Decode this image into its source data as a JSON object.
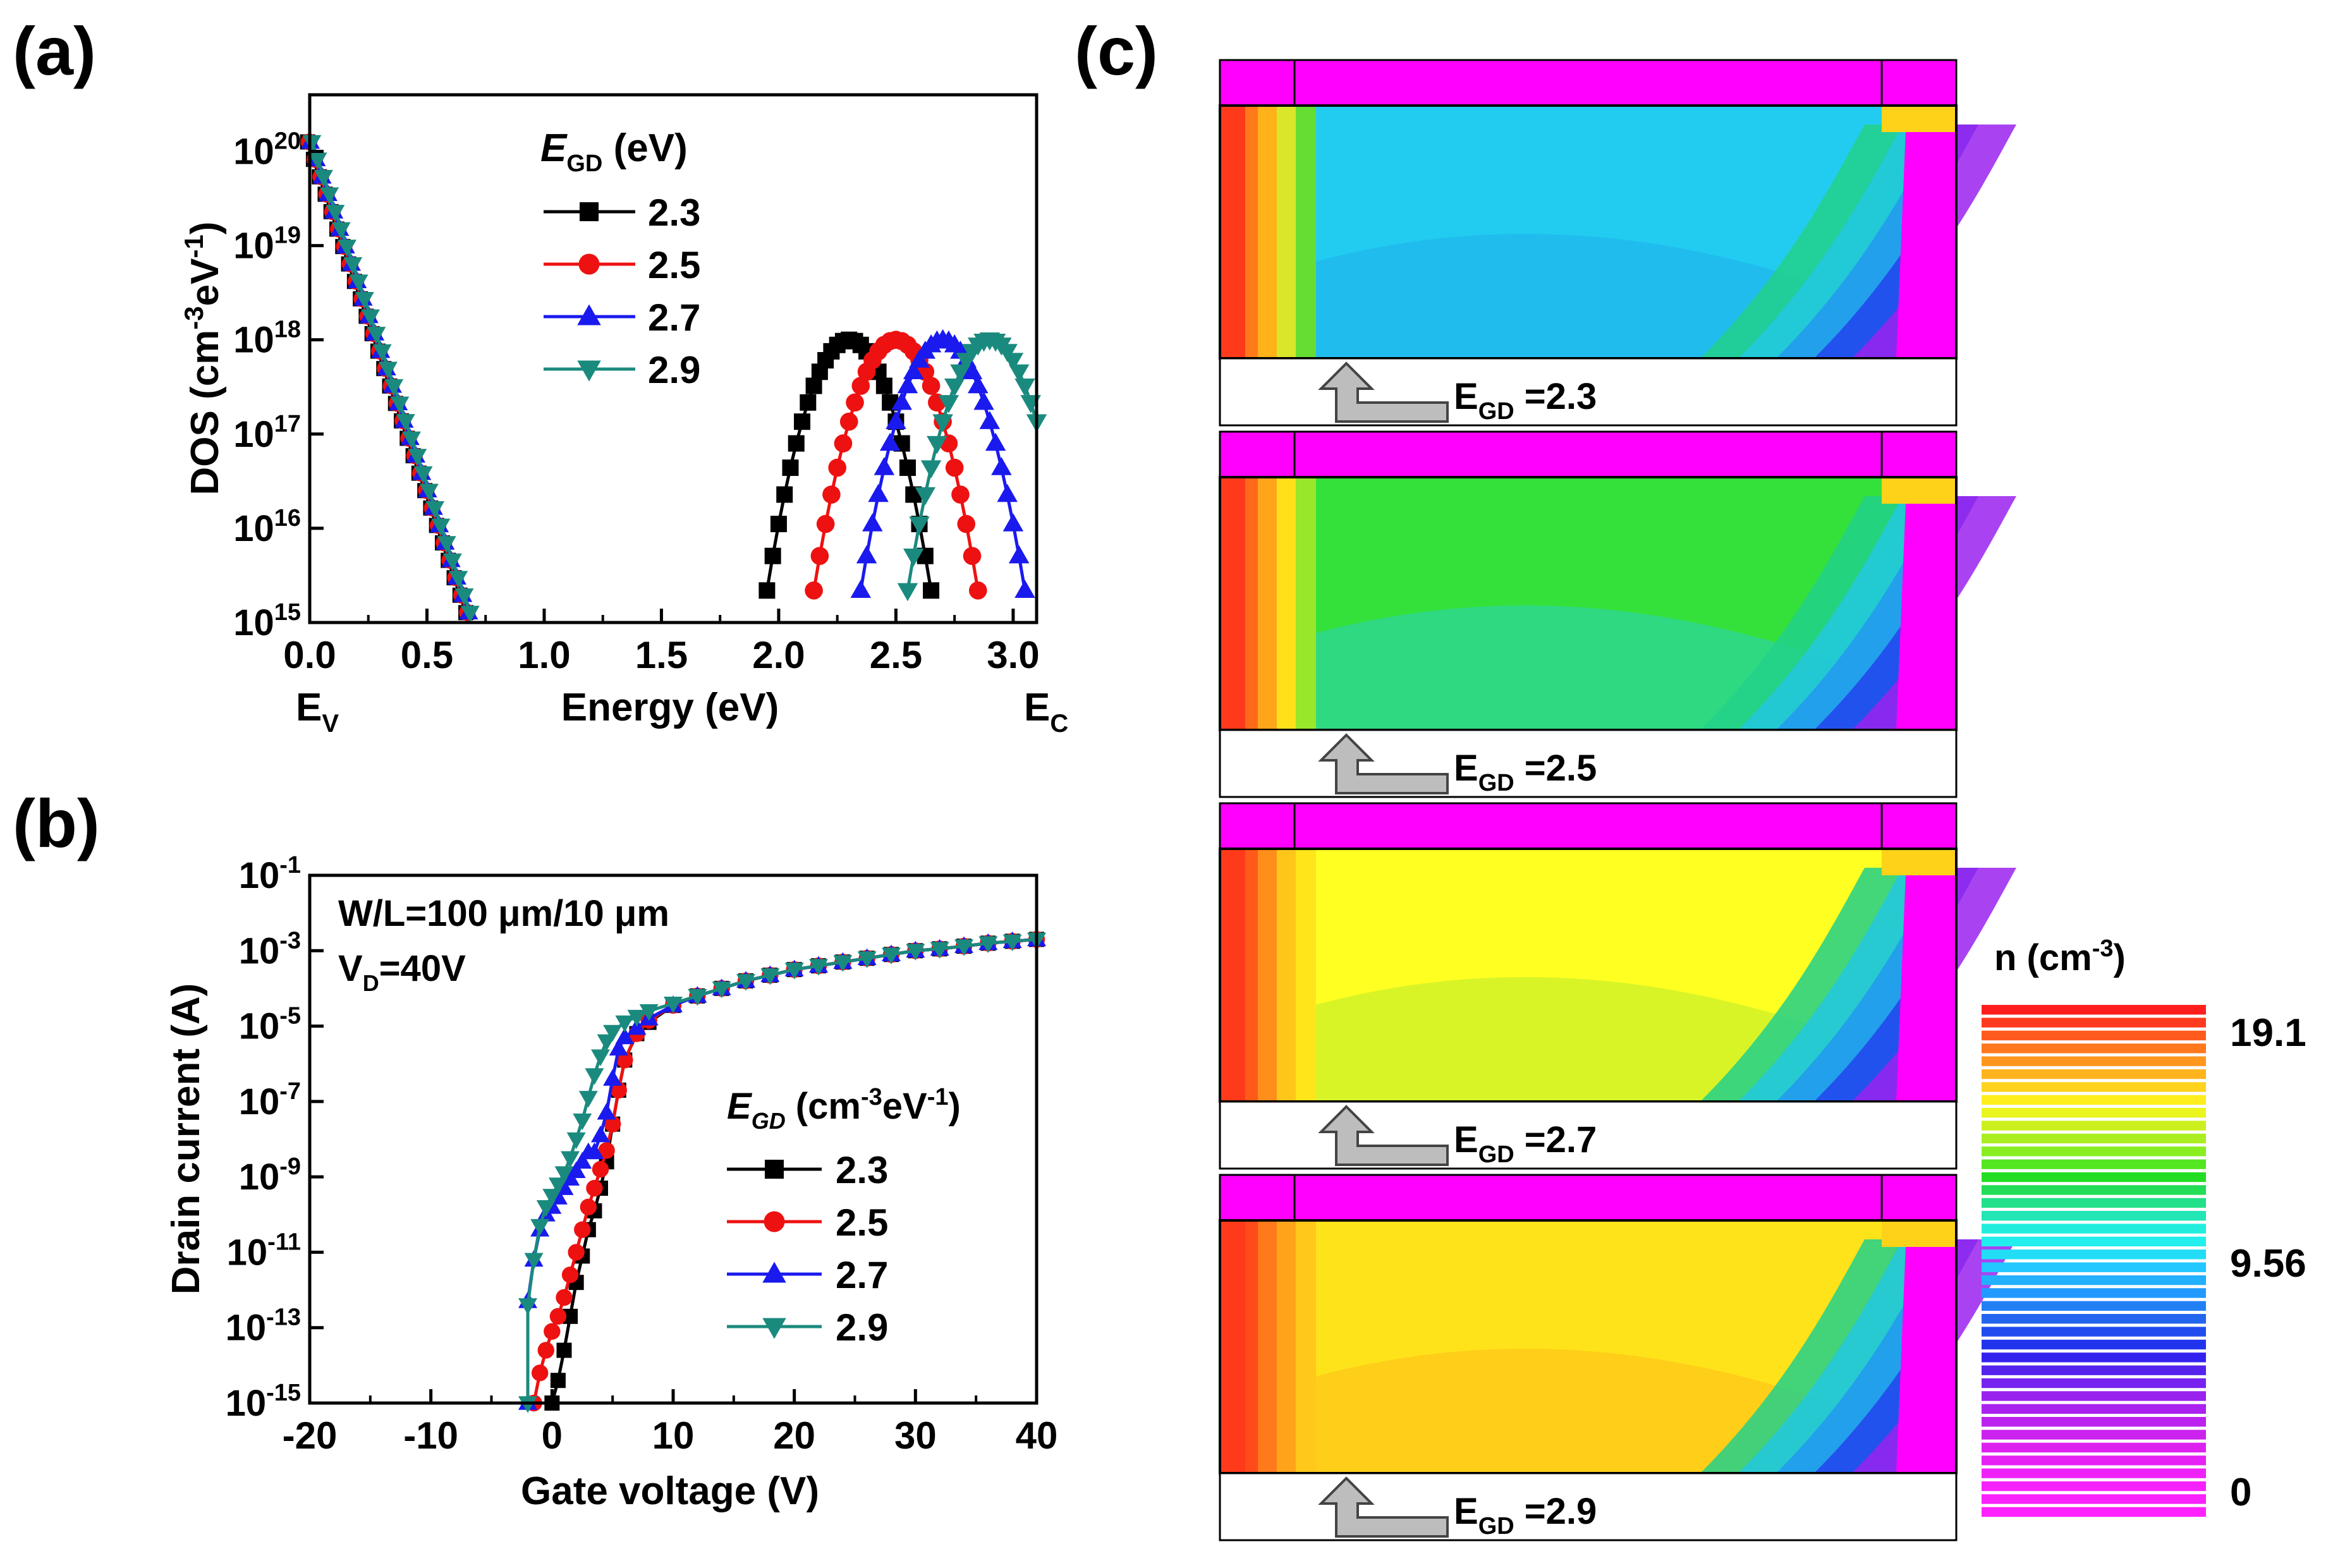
{
  "panel_labels": [
    "(a)",
    "(b)",
    "(c)"
  ],
  "colors": {
    "2.3": "#000000",
    "2.5": "#ee1111",
    "2.7": "#1a1aee",
    "2.9": "#1b8a7e",
    "oxide": "#ff00ff"
  },
  "chart_data": [
    {
      "panel": "(a)",
      "type": "line",
      "ylabel": {
        "base": "DOS (cm",
        "sup1": "-3",
        "mid": "eV",
        "sup2": "-1",
        "end": ")"
      },
      "xlabel": "Energy (eV)",
      "xlim": [
        0,
        3.1
      ],
      "ylim_log10": [
        15,
        20.6
      ],
      "y_scale": "log",
      "xticks": [
        "0.0",
        "0.5",
        "1.0",
        "1.5",
        "2.0",
        "2.5",
        "3.0"
      ],
      "xtick_values": [
        0,
        0.5,
        1.0,
        1.5,
        2.0,
        2.5,
        3.0
      ],
      "yticks": [
        {
          "base": "10",
          "exp": "15",
          "value": 15
        },
        {
          "base": "10",
          "exp": "16",
          "value": 16
        },
        {
          "base": "10",
          "exp": "17",
          "value": 17
        },
        {
          "base": "10",
          "exp": "18",
          "value": 18
        },
        {
          "base": "10",
          "exp": "19",
          "value": 19
        },
        {
          "base": "10",
          "exp": "20",
          "value": 20
        }
      ],
      "band_edges": [
        {
          "base": "E",
          "sub": "V"
        },
        {
          "base": "E",
          "sub": "C"
        }
      ],
      "legend": {
        "title_italic": "E",
        "title_sub": "GD",
        "title_rest": " (eV)",
        "position": "top-right"
      },
      "tail": {
        "x_start": 0.0,
        "log10_start": 20.1,
        "slope_per_eV": -7.4
      },
      "series": [
        {
          "name": "2.3",
          "marker": "square",
          "center": 2.3,
          "log10_peak": 18.0,
          "sigma": 0.1
        },
        {
          "name": "2.5",
          "marker": "circle",
          "center": 2.5,
          "log10_peak": 18.0,
          "sigma": 0.1
        },
        {
          "name": "2.7",
          "marker": "triangle-up",
          "center": 2.7,
          "log10_peak": 18.0,
          "sigma": 0.1
        },
        {
          "name": "2.9",
          "marker": "triangle-down",
          "center": 2.9,
          "log10_peak": 18.0,
          "sigma": 0.1
        }
      ]
    },
    {
      "panel": "(b)",
      "type": "line",
      "ylabel": "Drain current (A)",
      "xlabel": "Gate voltage (V)",
      "xlim": [
        -20,
        40
      ],
      "ylim_log10": [
        -15,
        -1
      ],
      "y_scale": "log",
      "xticks": [
        "-20",
        "-10",
        "0",
        "10",
        "20",
        "30",
        "40"
      ],
      "xtick_values": [
        -20,
        -10,
        0,
        10,
        20,
        30,
        40
      ],
      "yticks": [
        {
          "base": "10",
          "exp": "-15",
          "value": -15
        },
        {
          "base": "10",
          "exp": "-13",
          "value": -13
        },
        {
          "base": "10",
          "exp": "-11",
          "value": -11
        },
        {
          "base": "10",
          "exp": "-9",
          "value": -9
        },
        {
          "base": "10",
          "exp": "-7",
          "value": -7
        },
        {
          "base": "10",
          "exp": "-5",
          "value": -5
        },
        {
          "base": "10",
          "exp": "-3",
          "value": -3
        },
        {
          "base": "10",
          "exp": "-1",
          "value": -1
        }
      ],
      "annotation1": "W/L=100 μm/10 μm",
      "annotation2": {
        "base": "V",
        "sub": "D",
        "rest": "=40V"
      },
      "legend": {
        "title_italic": "E",
        "title_sub": "GD",
        "title_rest": " (cm",
        "sup1": "-3",
        "mid": "eV",
        "sup2": "-1",
        "end": ")",
        "position": "center-right"
      },
      "series": [
        {
          "name": "2.3",
          "marker": "square",
          "points": [
            [
              0,
              -15
            ],
            [
              0.5,
              -14.4
            ],
            [
              1,
              -13.6
            ],
            [
              1.5,
              -12.7
            ],
            [
              2,
              -11.8
            ],
            [
              2.5,
              -11.1
            ],
            [
              3,
              -10.4
            ],
            [
              3.5,
              -9.9
            ],
            [
              4,
              -9.3
            ],
            [
              4.5,
              -8.6
            ],
            [
              5,
              -7.6
            ],
            [
              5.5,
              -6.7
            ],
            [
              6,
              -5.9
            ],
            [
              7,
              -5.2
            ],
            [
              8,
              -4.9
            ],
            [
              10,
              -4.45
            ],
            [
              12,
              -4.2
            ],
            [
              14,
              -4.0
            ],
            [
              16,
              -3.8
            ],
            [
              18,
              -3.65
            ],
            [
              20,
              -3.5
            ],
            [
              22,
              -3.4
            ],
            [
              24,
              -3.3
            ],
            [
              26,
              -3.2
            ],
            [
              28,
              -3.1
            ],
            [
              30,
              -3.0
            ],
            [
              32,
              -2.95
            ],
            [
              34,
              -2.88
            ],
            [
              36,
              -2.8
            ],
            [
              38,
              -2.75
            ],
            [
              40,
              -2.7
            ]
          ]
        },
        {
          "name": "2.5",
          "marker": "circle",
          "points": [
            [
              -1.5,
              -15
            ],
            [
              -1,
              -14.2
            ],
            [
              -0.5,
              -13.6
            ],
            [
              0,
              -13.1
            ],
            [
              0.5,
              -12.7
            ],
            [
              1,
              -12.2
            ],
            [
              1.5,
              -11.6
            ],
            [
              2,
              -11.0
            ],
            [
              2.5,
              -10.4
            ],
            [
              3,
              -9.8
            ],
            [
              3.5,
              -9.3
            ],
            [
              4,
              -8.8
            ],
            [
              4.5,
              -8.3
            ],
            [
              5,
              -7.6
            ],
            [
              5.5,
              -6.7
            ],
            [
              6,
              -5.9
            ],
            [
              7,
              -5.2
            ],
            [
              8,
              -4.85
            ],
            [
              10,
              -4.45
            ],
            [
              12,
              -4.2
            ],
            [
              14,
              -4.0
            ],
            [
              16,
              -3.8
            ],
            [
              18,
              -3.65
            ],
            [
              20,
              -3.5
            ],
            [
              22,
              -3.4
            ],
            [
              24,
              -3.3
            ],
            [
              26,
              -3.2
            ],
            [
              28,
              -3.1
            ],
            [
              30,
              -3.0
            ],
            [
              32,
              -2.95
            ],
            [
              34,
              -2.88
            ],
            [
              36,
              -2.8
            ],
            [
              38,
              -2.75
            ],
            [
              40,
              -2.7
            ]
          ]
        },
        {
          "name": "2.7",
          "marker": "triangle-up",
          "points": [
            [
              -2,
              -15
            ],
            [
              -2,
              -12.3
            ],
            [
              -1.5,
              -11.2
            ],
            [
              -1,
              -10.4
            ],
            [
              -0.5,
              -10.0
            ],
            [
              0,
              -9.8
            ],
            [
              0.5,
              -9.55
            ],
            [
              1,
              -9.3
            ],
            [
              1.5,
              -9.05
            ],
            [
              2,
              -8.85
            ],
            [
              2.5,
              -8.6
            ],
            [
              3,
              -8.35
            ],
            [
              3.5,
              -8.35
            ],
            [
              4,
              -7.9
            ],
            [
              4.5,
              -7.3
            ],
            [
              5,
              -6.4
            ],
            [
              5.5,
              -5.6
            ],
            [
              6,
              -5.3
            ],
            [
              7,
              -5.05
            ],
            [
              8,
              -4.8
            ],
            [
              10,
              -4.45
            ],
            [
              12,
              -4.2
            ],
            [
              14,
              -4.0
            ],
            [
              16,
              -3.8
            ],
            [
              18,
              -3.65
            ],
            [
              20,
              -3.5
            ],
            [
              22,
              -3.4
            ],
            [
              24,
              -3.3
            ],
            [
              26,
              -3.2
            ],
            [
              28,
              -3.1
            ],
            [
              30,
              -3.0
            ],
            [
              32,
              -2.95
            ],
            [
              34,
              -2.88
            ],
            [
              36,
              -2.8
            ],
            [
              38,
              -2.75
            ],
            [
              40,
              -2.7
            ]
          ]
        },
        {
          "name": "2.9",
          "marker": "triangle-down",
          "points": [
            [
              -2,
              -15
            ],
            [
              -2,
              -12.4
            ],
            [
              -1.5,
              -11.2
            ],
            [
              -1,
              -10.3
            ],
            [
              -0.5,
              -9.8
            ],
            [
              0,
              -9.5
            ],
            [
              0.5,
              -9.2
            ],
            [
              1,
              -8.9
            ],
            [
              1.5,
              -8.5
            ],
            [
              2,
              -8.0
            ],
            [
              2.5,
              -7.5
            ],
            [
              3,
              -6.9
            ],
            [
              3.5,
              -6.3
            ],
            [
              4,
              -5.8
            ],
            [
              4.5,
              -5.4
            ],
            [
              5,
              -5.15
            ],
            [
              6,
              -4.9
            ],
            [
              7,
              -4.75
            ],
            [
              8,
              -4.6
            ],
            [
              10,
              -4.4
            ],
            [
              12,
              -4.2
            ],
            [
              14,
              -4.0
            ],
            [
              16,
              -3.8
            ],
            [
              18,
              -3.65
            ],
            [
              20,
              -3.5
            ],
            [
              22,
              -3.4
            ],
            [
              24,
              -3.3
            ],
            [
              26,
              -3.2
            ],
            [
              28,
              -3.1
            ],
            [
              30,
              -3.0
            ],
            [
              32,
              -2.95
            ],
            [
              34,
              -2.88
            ],
            [
              36,
              -2.8
            ],
            [
              38,
              -2.75
            ],
            [
              40,
              -2.7
            ]
          ]
        }
      ]
    },
    {
      "panel": "(c)",
      "type": "heatmap",
      "colorbar": {
        "title": {
          "base": "n (cm",
          "sup": "-3",
          "end": ")"
        },
        "tick_labels": [
          "19.1",
          "9.56",
          "0"
        ],
        "tick_values": [
          19.1,
          9.56,
          0
        ],
        "range": [
          0,
          19.1
        ]
      },
      "maps": [
        {
          "label": {
            "base": "E",
            "sub": "GD",
            "rest": " =2.3"
          },
          "e_gd": 2.3
        },
        {
          "label": {
            "base": "E",
            "sub": "GD",
            "rest": " =2.5"
          },
          "e_gd": 2.5
        },
        {
          "label": {
            "base": "E",
            "sub": "GD",
            "rest": " =2.7"
          },
          "e_gd": 2.7
        },
        {
          "label": {
            "base": "E",
            "sub": "GD",
            "rest": " =2.9"
          },
          "e_gd": 2.9
        }
      ]
    }
  ]
}
